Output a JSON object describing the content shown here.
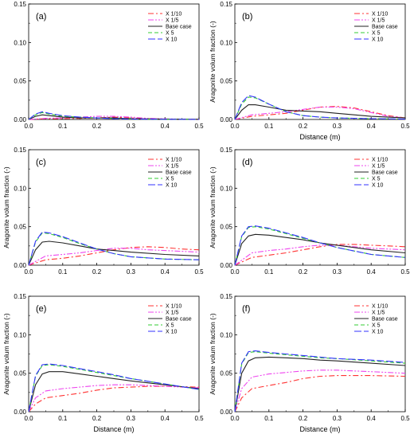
{
  "chart_data": [
    {
      "type": "line",
      "panel_label": "(a)",
      "xlabel": "",
      "ylabel": "",
      "xlim": [
        0,
        0.5
      ],
      "ylim": [
        0,
        0.15
      ],
      "xticks": [
        "0.0",
        "0.1",
        "0.2",
        "0.3",
        "0.4",
        "0.5"
      ],
      "yticks": [
        "0.00",
        "0.05",
        "0.10",
        "0.15"
      ],
      "grid": false,
      "legend_position": "top-right",
      "series": [
        {
          "name": "X 1/10",
          "color": "#ff3333",
          "dash": "dashdot",
          "x": [
            0,
            0.05,
            0.1,
            0.15,
            0.2,
            0.25,
            0.3,
            0.35,
            0.4,
            0.45,
            0.5
          ],
          "y": [
            0,
            0.001,
            0.001,
            0.0015,
            0.002,
            0.003,
            0.002,
            0.001,
            0.0005,
            0.0003,
            0.0002
          ]
        },
        {
          "name": "X 1/5",
          "color": "#ee44ee",
          "dash": "dashdotdot",
          "x": [
            0,
            0.05,
            0.1,
            0.15,
            0.2,
            0.25,
            0.3,
            0.35,
            0.4,
            0.45,
            0.5
          ],
          "y": [
            0,
            0.0015,
            0.002,
            0.003,
            0.004,
            0.004,
            0.003,
            0.0015,
            0.0008,
            0.0004,
            0.0003
          ]
        },
        {
          "name": "Base case",
          "color": "#222222",
          "dash": "solid",
          "x": [
            0,
            0.02,
            0.04,
            0.06,
            0.1,
            0.15,
            0.2,
            0.25,
            0.3,
            0.4,
            0.5
          ],
          "y": [
            0,
            0.004,
            0.006,
            0.005,
            0.003,
            0.002,
            0.002,
            0.002,
            0.001,
            0.0004,
            0.0002
          ]
        },
        {
          "name": "X 5",
          "color": "#33cc33",
          "dash": "dashed",
          "x": [
            0,
            0.02,
            0.04,
            0.06,
            0.1,
            0.15,
            0.2,
            0.25,
            0.3,
            0.4,
            0.5
          ],
          "y": [
            0,
            0.006,
            0.009,
            0.007,
            0.004,
            0.003,
            0.002,
            0.001,
            0.0005,
            0.0002,
            0.0001
          ]
        },
        {
          "name": "X 10",
          "color": "#3333ff",
          "dash": "longdash",
          "x": [
            0,
            0.02,
            0.04,
            0.06,
            0.1,
            0.15,
            0.2,
            0.25,
            0.3,
            0.4,
            0.5
          ],
          "y": [
            0,
            0.007,
            0.01,
            0.008,
            0.005,
            0.003,
            0.002,
            0.001,
            0.0005,
            0.0002,
            0.0001
          ]
        }
      ]
    },
    {
      "type": "line",
      "panel_label": "(b)",
      "xlabel": "Distance (m)",
      "ylabel": "Aragonite volum fraction (-)",
      "xlim": [
        0,
        0.5
      ],
      "ylim": [
        0,
        0.15
      ],
      "xticks": [
        "0.0",
        "0.1",
        "0.2",
        "0.3",
        "0.4",
        "0.5"
      ],
      "yticks": [
        "0.00",
        "0.05",
        "0.10",
        "0.15"
      ],
      "grid": false,
      "legend_position": "top-right",
      "series": [
        {
          "name": "X 1/10",
          "color": "#ff3333",
          "dash": "dashdot",
          "x": [
            0,
            0.05,
            0.1,
            0.15,
            0.2,
            0.25,
            0.3,
            0.35,
            0.4,
            0.45,
            0.5
          ],
          "y": [
            0,
            0.004,
            0.006,
            0.008,
            0.012,
            0.016,
            0.017,
            0.015,
            0.01,
            0.005,
            0.002
          ]
        },
        {
          "name": "X 1/5",
          "color": "#ee44ee",
          "dash": "dashdotdot",
          "x": [
            0,
            0.05,
            0.1,
            0.15,
            0.2,
            0.25,
            0.3,
            0.35,
            0.4,
            0.45,
            0.5
          ],
          "y": [
            0,
            0.006,
            0.008,
            0.01,
            0.013,
            0.016,
            0.016,
            0.014,
            0.009,
            0.004,
            0.002
          ]
        },
        {
          "name": "Base case",
          "color": "#222222",
          "dash": "solid",
          "x": [
            0,
            0.02,
            0.04,
            0.06,
            0.1,
            0.15,
            0.2,
            0.25,
            0.3,
            0.4,
            0.5
          ],
          "y": [
            0,
            0.012,
            0.019,
            0.019,
            0.016,
            0.012,
            0.011,
            0.01,
            0.008,
            0.004,
            0.002
          ]
        },
        {
          "name": "X 5",
          "color": "#33cc33",
          "dash": "dashed",
          "x": [
            0,
            0.02,
            0.04,
            0.06,
            0.1,
            0.15,
            0.2,
            0.25,
            0.3,
            0.4,
            0.5
          ],
          "y": [
            0,
            0.02,
            0.029,
            0.028,
            0.02,
            0.01,
            0.005,
            0.003,
            0.002,
            0.001,
            0.0005
          ]
        },
        {
          "name": "X 10",
          "color": "#3333ff",
          "dash": "longdash",
          "x": [
            0,
            0.02,
            0.04,
            0.06,
            0.1,
            0.15,
            0.2,
            0.25,
            0.3,
            0.4,
            0.5
          ],
          "y": [
            0,
            0.022,
            0.031,
            0.029,
            0.02,
            0.01,
            0.005,
            0.003,
            0.002,
            0.001,
            0.0005
          ]
        }
      ]
    },
    {
      "type": "line",
      "panel_label": "(c)",
      "xlabel": "",
      "ylabel": "Aragonite volum fraction (-)",
      "xlim": [
        0,
        0.5
      ],
      "ylim": [
        0,
        0.15
      ],
      "xticks": [
        "0.0",
        "0.1",
        "0.2",
        "0.3",
        "0.4",
        "0.5"
      ],
      "yticks": [
        "0.00",
        "0.05",
        "0.10",
        "0.15"
      ],
      "grid": false,
      "legend_position": "top-right",
      "series": [
        {
          "name": "X 1/10",
          "color": "#ff3333",
          "dash": "dashdot",
          "x": [
            0,
            0.05,
            0.1,
            0.15,
            0.2,
            0.25,
            0.3,
            0.35,
            0.4,
            0.45,
            0.5
          ],
          "y": [
            0,
            0.007,
            0.009,
            0.012,
            0.016,
            0.02,
            0.023,
            0.024,
            0.023,
            0.021,
            0.02
          ]
        },
        {
          "name": "X 1/5",
          "color": "#ee44ee",
          "dash": "dashdotdot",
          "x": [
            0,
            0.05,
            0.1,
            0.15,
            0.2,
            0.25,
            0.3,
            0.35,
            0.4,
            0.45,
            0.5
          ],
          "y": [
            0,
            0.012,
            0.014,
            0.016,
            0.019,
            0.022,
            0.022,
            0.02,
            0.019,
            0.018,
            0.017
          ]
        },
        {
          "name": "Base case",
          "color": "#222222",
          "dash": "solid",
          "x": [
            0,
            0.02,
            0.04,
            0.06,
            0.1,
            0.15,
            0.2,
            0.25,
            0.3,
            0.4,
            0.5
          ],
          "y": [
            0,
            0.02,
            0.03,
            0.031,
            0.029,
            0.025,
            0.021,
            0.019,
            0.017,
            0.014,
            0.012
          ]
        },
        {
          "name": "X 5",
          "color": "#33cc33",
          "dash": "dashed",
          "x": [
            0,
            0.02,
            0.04,
            0.06,
            0.1,
            0.15,
            0.2,
            0.25,
            0.3,
            0.4,
            0.5
          ],
          "y": [
            0,
            0.03,
            0.042,
            0.041,
            0.036,
            0.028,
            0.021,
            0.015,
            0.011,
            0.008,
            0.007
          ]
        },
        {
          "name": "X 10",
          "color": "#3333ff",
          "dash": "longdash",
          "x": [
            0,
            0.02,
            0.04,
            0.06,
            0.1,
            0.15,
            0.2,
            0.25,
            0.3,
            0.4,
            0.5
          ],
          "y": [
            0,
            0.031,
            0.043,
            0.042,
            0.037,
            0.029,
            0.021,
            0.015,
            0.011,
            0.008,
            0.007
          ]
        }
      ]
    },
    {
      "type": "line",
      "panel_label": "(d)",
      "xlabel": "",
      "ylabel": "Aragonite volum fraction (-)",
      "xlim": [
        0,
        0.5
      ],
      "ylim": [
        0,
        0.15
      ],
      "xticks": [
        "0.0",
        "0.1",
        "0.2",
        "0.3",
        "0.4",
        "0.5"
      ],
      "yticks": [
        "0.00",
        "0.05",
        "0.10",
        "0.15"
      ],
      "grid": false,
      "legend_position": "top-right",
      "series": [
        {
          "name": "X 1/10",
          "color": "#ff3333",
          "dash": "dashdot",
          "x": [
            0,
            0.05,
            0.1,
            0.15,
            0.2,
            0.25,
            0.3,
            0.35,
            0.4,
            0.45,
            0.5
          ],
          "y": [
            0,
            0.01,
            0.013,
            0.016,
            0.02,
            0.024,
            0.027,
            0.027,
            0.026,
            0.025,
            0.024
          ]
        },
        {
          "name": "X 1/5",
          "color": "#ee44ee",
          "dash": "dashdotdot",
          "x": [
            0,
            0.05,
            0.1,
            0.15,
            0.2,
            0.25,
            0.3,
            0.35,
            0.4,
            0.45,
            0.5
          ],
          "y": [
            0,
            0.016,
            0.019,
            0.021,
            0.024,
            0.026,
            0.026,
            0.024,
            0.022,
            0.021,
            0.02
          ]
        },
        {
          "name": "Base case",
          "color": "#222222",
          "dash": "solid",
          "x": [
            0,
            0.02,
            0.04,
            0.06,
            0.1,
            0.15,
            0.2,
            0.25,
            0.3,
            0.4,
            0.5
          ],
          "y": [
            0,
            0.028,
            0.038,
            0.04,
            0.039,
            0.036,
            0.033,
            0.029,
            0.026,
            0.02,
            0.016
          ]
        },
        {
          "name": "X 5",
          "color": "#33cc33",
          "dash": "dashed",
          "x": [
            0,
            0.02,
            0.04,
            0.06,
            0.1,
            0.15,
            0.2,
            0.25,
            0.3,
            0.4,
            0.5
          ],
          "y": [
            0,
            0.037,
            0.049,
            0.05,
            0.047,
            0.041,
            0.035,
            0.029,
            0.023,
            0.014,
            0.01
          ]
        },
        {
          "name": "X 10",
          "color": "#3333ff",
          "dash": "longdash",
          "x": [
            0,
            0.02,
            0.04,
            0.06,
            0.1,
            0.15,
            0.2,
            0.25,
            0.3,
            0.4,
            0.5
          ],
          "y": [
            0,
            0.038,
            0.05,
            0.051,
            0.048,
            0.042,
            0.036,
            0.029,
            0.023,
            0.014,
            0.01
          ]
        }
      ]
    },
    {
      "type": "line",
      "panel_label": "(e)",
      "xlabel": "Distance (m)",
      "ylabel": "Aragonite volum fraction (-)",
      "xlim": [
        0,
        0.5
      ],
      "ylim": [
        0,
        0.15
      ],
      "xticks": [
        "0.0",
        "0.1",
        "0.2",
        "0.3",
        "0.4",
        "0.5"
      ],
      "yticks": [
        "0.00",
        "0.05",
        "0.10",
        "0.15"
      ],
      "grid": false,
      "legend_position": "top-right",
      "series": [
        {
          "name": "X 1/10",
          "color": "#ff3333",
          "dash": "dashdot",
          "x": [
            0,
            0.02,
            0.05,
            0.1,
            0.15,
            0.2,
            0.25,
            0.3,
            0.35,
            0.4,
            0.5
          ],
          "y": [
            0,
            0.01,
            0.018,
            0.021,
            0.024,
            0.028,
            0.031,
            0.032,
            0.033,
            0.033,
            0.032
          ]
        },
        {
          "name": "X 1/5",
          "color": "#ee44ee",
          "dash": "dashdotdot",
          "x": [
            0,
            0.02,
            0.05,
            0.1,
            0.15,
            0.2,
            0.25,
            0.3,
            0.35,
            0.4,
            0.5
          ],
          "y": [
            0,
            0.018,
            0.027,
            0.03,
            0.032,
            0.034,
            0.035,
            0.035,
            0.034,
            0.033,
            0.031
          ]
        },
        {
          "name": "Base case",
          "color": "#222222",
          "dash": "solid",
          "x": [
            0,
            0.02,
            0.04,
            0.06,
            0.1,
            0.15,
            0.2,
            0.25,
            0.3,
            0.4,
            0.5
          ],
          "y": [
            0,
            0.035,
            0.049,
            0.052,
            0.052,
            0.049,
            0.046,
            0.043,
            0.04,
            0.035,
            0.03
          ]
        },
        {
          "name": "X 5",
          "color": "#33cc33",
          "dash": "dashed",
          "x": [
            0,
            0.02,
            0.04,
            0.06,
            0.1,
            0.15,
            0.2,
            0.25,
            0.3,
            0.4,
            0.5
          ],
          "y": [
            0,
            0.046,
            0.06,
            0.061,
            0.059,
            0.055,
            0.051,
            0.047,
            0.043,
            0.036,
            0.029
          ]
        },
        {
          "name": "X 10",
          "color": "#3333ff",
          "dash": "longdash",
          "x": [
            0,
            0.02,
            0.04,
            0.06,
            0.1,
            0.15,
            0.2,
            0.25,
            0.3,
            0.4,
            0.5
          ],
          "y": [
            0,
            0.047,
            0.061,
            0.062,
            0.06,
            0.056,
            0.052,
            0.048,
            0.043,
            0.036,
            0.029
          ]
        }
      ]
    },
    {
      "type": "line",
      "panel_label": "(f)",
      "xlabel": "Distance (m)",
      "ylabel": "Aragonite volum fraction (-)",
      "xlim": [
        0,
        0.5
      ],
      "ylim": [
        0,
        0.15
      ],
      "xticks": [
        "0.0",
        "0.1",
        "0.2",
        "0.3",
        "0.4",
        "0.5"
      ],
      "yticks": [
        "0.00",
        "0.05",
        "0.10",
        "0.15"
      ],
      "grid": false,
      "legend_position": "top-right",
      "series": [
        {
          "name": "X 1/10",
          "color": "#ff3333",
          "dash": "dashdot",
          "x": [
            0,
            0.02,
            0.05,
            0.1,
            0.15,
            0.2,
            0.25,
            0.3,
            0.35,
            0.4,
            0.5
          ],
          "y": [
            0,
            0.018,
            0.03,
            0.034,
            0.038,
            0.043,
            0.046,
            0.047,
            0.047,
            0.047,
            0.046
          ]
        },
        {
          "name": "X 1/5",
          "color": "#ee44ee",
          "dash": "dashdotdot",
          "x": [
            0,
            0.02,
            0.05,
            0.1,
            0.15,
            0.2,
            0.25,
            0.3,
            0.35,
            0.4,
            0.5
          ],
          "y": [
            0,
            0.03,
            0.045,
            0.049,
            0.051,
            0.053,
            0.054,
            0.054,
            0.053,
            0.052,
            0.05
          ]
        },
        {
          "name": "Base case",
          "color": "#222222",
          "dash": "solid",
          "x": [
            0,
            0.02,
            0.04,
            0.06,
            0.1,
            0.15,
            0.2,
            0.25,
            0.3,
            0.4,
            0.5
          ],
          "y": [
            0,
            0.05,
            0.066,
            0.07,
            0.071,
            0.07,
            0.069,
            0.067,
            0.066,
            0.063,
            0.06
          ]
        },
        {
          "name": "X 5",
          "color": "#33cc33",
          "dash": "dashed",
          "x": [
            0,
            0.02,
            0.04,
            0.06,
            0.1,
            0.15,
            0.2,
            0.25,
            0.3,
            0.4,
            0.5
          ],
          "y": [
            0,
            0.062,
            0.077,
            0.078,
            0.076,
            0.074,
            0.072,
            0.07,
            0.069,
            0.066,
            0.063
          ]
        },
        {
          "name": "X 10",
          "color": "#3333ff",
          "dash": "longdash",
          "x": [
            0,
            0.02,
            0.04,
            0.06,
            0.1,
            0.15,
            0.2,
            0.25,
            0.3,
            0.4,
            0.5
          ],
          "y": [
            0,
            0.063,
            0.078,
            0.079,
            0.077,
            0.075,
            0.073,
            0.071,
            0.069,
            0.067,
            0.064
          ]
        }
      ]
    }
  ]
}
